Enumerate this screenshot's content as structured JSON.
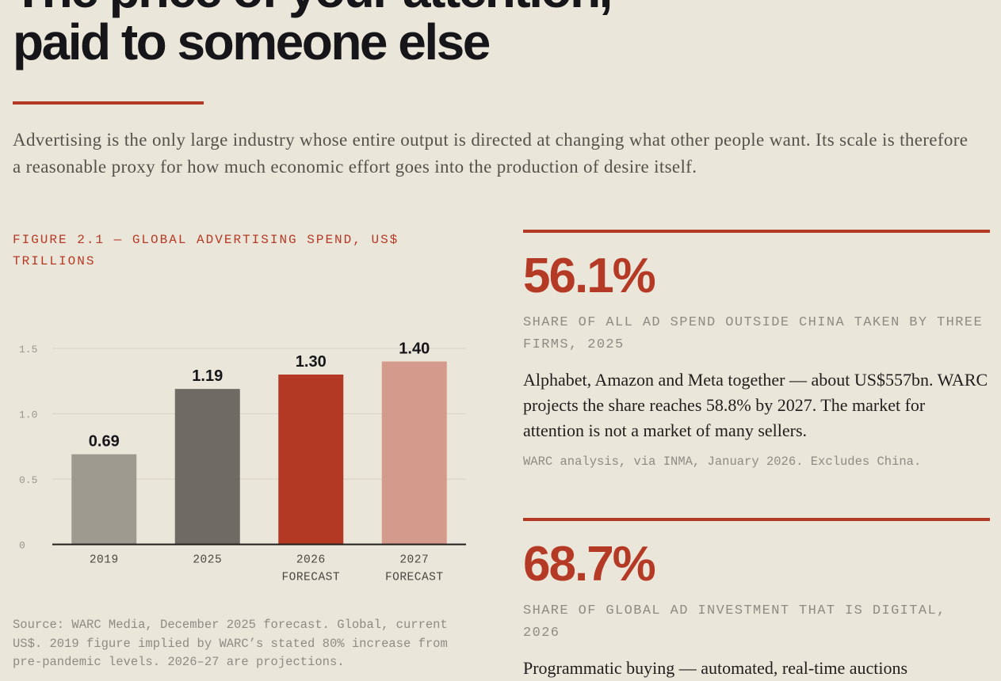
{
  "header": {
    "title_line1": "The price of your attention,",
    "title_line2": "paid to someone else",
    "lede": "Advertising is the only large industry whose entire output is directed at changing what other people want. Its scale is therefore a reasonable proxy for how much economic effort goes into the production of desire itself."
  },
  "figure": {
    "label": "FIGURE 2.1 — GLOBAL ADVERTISING SPEND, US$ TRILLIONS",
    "source": "Source: WARC Media, December 2025 forecast. Global, current US$. 2019 figure implied by WARC’s stated 80% increase from pre-pandemic levels. 2026–27 are projections."
  },
  "chart_data": {
    "type": "bar",
    "title": "FIGURE 2.1 — GLOBAL ADVERTISING SPEND, US$ TRILLIONS",
    "categories": [
      [
        "2019"
      ],
      [
        "2025"
      ],
      [
        "2026",
        "FORECAST"
      ],
      [
        "2027",
        "FORECAST"
      ]
    ],
    "values": [
      0.69,
      1.19,
      1.3,
      1.4
    ],
    "value_labels": [
      "0.69",
      "1.19",
      "1.30",
      "1.40"
    ],
    "bar_colors": [
      "#9e9a90",
      "#6f6a63",
      "#b33924",
      "#d49a8c"
    ],
    "ylim": [
      0,
      1.5
    ],
    "yticks": [
      0,
      0.5,
      1.0,
      1.5
    ],
    "ytick_labels": [
      "0",
      "0.5",
      "1.0",
      "1.5"
    ],
    "grid": true,
    "xlabel": "",
    "ylabel": ""
  },
  "stats": [
    {
      "value": "56.1%",
      "caption": "SHARE OF ALL AD SPEND OUTSIDE CHINA TAKEN BY THREE FIRMS, 2025",
      "body": "Alphabet, Amazon and Meta together — about US$557bn. WARC projects the share reaches 58.8% by 2027. The market for attention is not a market of many sellers.",
      "note": "WARC analysis, via INMA, January 2026. Excludes China."
    },
    {
      "value": "68.7%",
      "caption": "SHARE OF GLOBAL AD INVESTMENT THAT IS DIGITAL, 2026",
      "body": "Programmatic buying — automated, real-time auctions"
    }
  ],
  "colors": {
    "accent": "#b53a26",
    "background": "#ebe6da"
  }
}
